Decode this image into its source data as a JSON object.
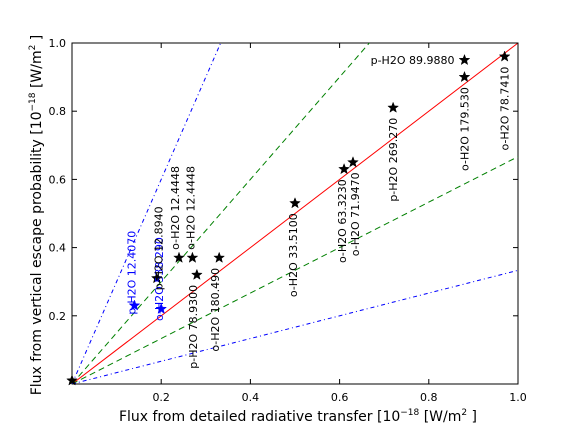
{
  "chart_data": {
    "type": "scatter",
    "xlabel": "Flux from detailed radiative transfer [10",
    "xlabel_exp": "−18",
    "xlabel_unit": " [W/m",
    "xlabel_unit_exp": "2",
    "xlabel_end": " ]",
    "ylabel": "Flux from vertical escape probability [10",
    "ylabel_exp": "−18",
    "ylabel_unit": " [W/m",
    "ylabel_unit_exp": "2",
    "ylabel_end": " ]",
    "xlim": [
      0.0,
      1.0
    ],
    "ylim": [
      0.0,
      1.0
    ],
    "x_ticks": [
      0.2,
      0.4,
      0.6,
      0.8,
      1.0
    ],
    "x_tick_labels": [
      "0.2",
      "0.4",
      "0.6",
      "0.8",
      "1.0"
    ],
    "y_ticks": [
      0.2,
      0.4,
      0.6,
      0.8,
      1.0
    ],
    "y_tick_labels": [
      "0.2",
      "0.4",
      "0.6",
      "0.8",
      "1.0"
    ],
    "grid": false,
    "reference_lines": [
      {
        "kind": "one-to-one",
        "slope": 1.0,
        "color": "#ff0000",
        "style": "solid"
      },
      {
        "kind": "factor-1.5",
        "slope": 1.5,
        "color": "#008000",
        "style": "dashed"
      },
      {
        "kind": "factor-1.5",
        "slope": 0.6667,
        "color": "#008000",
        "style": "dashed"
      },
      {
        "kind": "factor-3",
        "slope": 3.0,
        "color": "#0000ff",
        "style": "dash-dot"
      },
      {
        "kind": "factor-3",
        "slope": 0.3333,
        "color": "#0000ff",
        "style": "dash-dot"
      }
    ],
    "points": [
      {
        "x": 0.0,
        "y": 0.01,
        "label": "",
        "color": "#000000",
        "label_color": "#000000"
      },
      {
        "x": 0.14,
        "y": 0.23,
        "label": "p-H2O 12.4070",
        "color": "#0000ff",
        "label_color": "#0000ff"
      },
      {
        "x": 0.2,
        "y": 0.22,
        "label": "o-H2O 538.290",
        "color": "#0000ff",
        "label_color": "#0000ff"
      },
      {
        "x": 0.19,
        "y": 0.31,
        "label": "p-H2O 12.8940",
        "color": "#000000",
        "label_color": "#000000"
      },
      {
        "x": 0.24,
        "y": 0.37,
        "label": "o-H2O 12.4448",
        "color": "#000000",
        "label_color": "#000000"
      },
      {
        "x": 0.27,
        "y": 0.37,
        "label": "o-H2O 12.4448",
        "color": "#000000",
        "label_color": "#000000"
      },
      {
        "x": 0.28,
        "y": 0.32,
        "label": "p-H2O 78.9300",
        "color": "#000000",
        "label_color": "#000000"
      },
      {
        "x": 0.33,
        "y": 0.37,
        "label": "o-H2O 180.490",
        "color": "#000000",
        "label_color": "#000000"
      },
      {
        "x": 0.5,
        "y": 0.53,
        "label": "o-H2O 33.5100",
        "color": "#000000",
        "label_color": "#000000"
      },
      {
        "x": 0.61,
        "y": 0.63,
        "label": "o-H2O 63.3230",
        "color": "#000000",
        "label_color": "#000000"
      },
      {
        "x": 0.63,
        "y": 0.65,
        "label": "o-H2O 71.9470",
        "color": "#000000",
        "label_color": "#000000"
      },
      {
        "x": 0.72,
        "y": 0.81,
        "label": "p-H2O 269.270",
        "color": "#000000",
        "label_color": "#000000"
      },
      {
        "x": 0.88,
        "y": 0.95,
        "label": "p-H2O 89.9880",
        "color": "#000000",
        "label_color": "#000000"
      },
      {
        "x": 0.88,
        "y": 0.9,
        "label": "o-H2O 179.530",
        "color": "#000000",
        "label_color": "#000000"
      },
      {
        "x": 0.97,
        "y": 0.96,
        "label": "o-H2O 78.7410",
        "color": "#000000",
        "label_color": "#000000"
      }
    ]
  }
}
